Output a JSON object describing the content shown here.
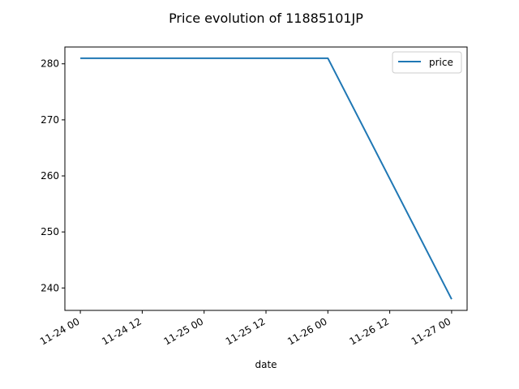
{
  "chart_data": {
    "type": "line",
    "title": "Price evolution of 11885101JP",
    "xlabel": "date",
    "ylabel": "",
    "x": [
      "2023-11-24 00:00",
      "2023-11-26 00:00",
      "2023-11-27 00:00"
    ],
    "series": [
      {
        "name": "price",
        "values": [
          281,
          281,
          238
        ],
        "color": "#1f77b4"
      }
    ],
    "xlim": [
      "2023-11-23 21:00",
      "2023-11-27 03:00"
    ],
    "ylim": [
      236,
      283
    ],
    "xticks": [
      "11-24 00",
      "11-24 12",
      "11-25 00",
      "11-25 12",
      "11-26 00",
      "11-26 12",
      "11-27 00"
    ],
    "yticks": [
      240,
      250,
      260,
      270,
      280
    ],
    "grid": false,
    "legend": "upper right"
  }
}
